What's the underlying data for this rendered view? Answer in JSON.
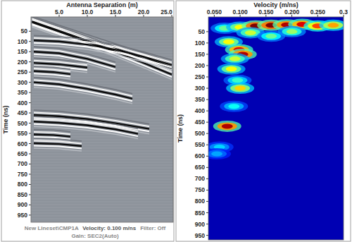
{
  "chart_data": [
    {
      "type": "line",
      "x_label": "Antenna Separation (m)",
      "y_label": "Time (ns)",
      "xlim": [
        0,
        25.25
      ],
      "ylim": [
        985,
        -20
      ],
      "xticks": [
        {
          "value": 5,
          "label": "5.0"
        },
        {
          "value": 10,
          "label": "10.0"
        },
        {
          "value": 15,
          "label": "15.0"
        },
        {
          "value": 20,
          "label": "20.0"
        },
        {
          "value": 25,
          "label": "25.0"
        }
      ],
      "yticks": [
        50,
        100,
        150,
        200,
        250,
        300,
        350,
        400,
        450,
        500,
        550,
        600,
        650,
        700,
        750,
        800,
        850,
        900,
        950
      ],
      "series": [
        {
          "x": [
            0.2,
            5,
            10,
            15,
            20,
            25
          ],
          "values": [
            0,
            45,
            90,
            135,
            180,
            228
          ]
        },
        {
          "x": [
            0.2,
            5,
            10,
            15,
            20,
            25
          ],
          "values": [
            6,
            52,
            100,
            150,
            205,
            262
          ]
        },
        {
          "x": [
            0.5,
            5,
            10,
            15,
            20,
            25
          ],
          "values": [
            95,
            100,
            115,
            140,
            175,
            215
          ]
        },
        {
          "x": [
            0.5,
            5,
            10,
            15
          ],
          "values": [
            150,
            158,
            185,
            225
          ]
        },
        {
          "x": [
            0.5,
            5,
            10
          ],
          "values": [
            205,
            212,
            228
          ]
        },
        {
          "x": [
            0.5,
            4,
            7
          ],
          "values": [
            245,
            250,
            260
          ]
        },
        {
          "x": [
            0.5,
            5,
            10,
            15,
            18
          ],
          "values": [
            300,
            310,
            332,
            360,
            380
          ]
        },
        {
          "x": [
            0.5,
            5,
            10,
            15,
            21
          ],
          "values": [
            460,
            466,
            480,
            500,
            528
          ]
        },
        {
          "x": [
            0.5,
            5,
            10,
            15,
            19
          ],
          "values": [
            492,
            498,
            510,
            530,
            552
          ]
        },
        {
          "x": [
            0.5,
            4,
            7
          ],
          "values": [
            555,
            558,
            566
          ]
        },
        {
          "x": [
            0.5,
            5,
            9
          ],
          "values": [
            598,
            602,
            612
          ]
        }
      ],
      "annotations": [
        "New Lineset\\CMP1A",
        "Velocity: 0.100 m/ns",
        "Filter: Off",
        "Gain: SEC2(Auto)"
      ]
    },
    {
      "type": "heatmap",
      "x_label": "Velocity (m/ns)",
      "y_label": "Time (ns)",
      "xlim": [
        0.0386,
        0.3
      ],
      "ylim": [
        970,
        -15
      ],
      "xticks": [
        {
          "value": 0.05,
          "label": "0.050"
        },
        {
          "value": 0.1,
          "label": "0.100"
        },
        {
          "value": 0.15,
          "label": "0.150"
        },
        {
          "value": 0.2,
          "label": "0.200"
        },
        {
          "value": 0.25,
          "label": "0.250"
        },
        0.3
      ],
      "yticks": [
        50,
        100,
        150,
        200,
        250,
        300,
        350,
        400,
        450,
        500,
        550,
        600,
        650,
        700,
        750,
        800,
        850,
        900,
        950
      ],
      "color_range": [
        0,
        1
      ],
      "cells": [
        {
          "x": 0.07,
          "y": 35,
          "value": 0.45
        },
        {
          "x": 0.1,
          "y": 30,
          "value": 0.6
        },
        {
          "x": 0.13,
          "y": 25,
          "value": 1
        },
        {
          "x": 0.16,
          "y": 22,
          "value": 1
        },
        {
          "x": 0.19,
          "y": 20,
          "value": 0.95
        },
        {
          "x": 0.22,
          "y": 18,
          "value": 0.9
        },
        {
          "x": 0.25,
          "y": 25,
          "value": 0.8
        },
        {
          "x": 0.28,
          "y": 22,
          "value": 0.7
        },
        {
          "x": 0.12,
          "y": 55,
          "value": 0.55
        },
        {
          "x": 0.16,
          "y": 70,
          "value": 0.45
        },
        {
          "x": 0.2,
          "y": 50,
          "value": 0.5
        },
        {
          "x": 0.078,
          "y": 95,
          "value": 0.6
        },
        {
          "x": 0.098,
          "y": 130,
          "value": 0.9
        },
        {
          "x": 0.105,
          "y": 150,
          "value": 0.95
        },
        {
          "x": 0.09,
          "y": 170,
          "value": 0.55
        },
        {
          "x": 0.083,
          "y": 215,
          "value": 0.6
        },
        {
          "x": 0.095,
          "y": 265,
          "value": 0.4
        },
        {
          "x": 0.1,
          "y": 300,
          "value": 0.65
        },
        {
          "x": 0.088,
          "y": 380,
          "value": 0.35
        },
        {
          "x": 0.075,
          "y": 468,
          "value": 0.95
        },
        {
          "x": 0.06,
          "y": 560,
          "value": 0.3
        },
        {
          "x": 0.055,
          "y": 590,
          "value": 0.25
        }
      ]
    }
  ]
}
